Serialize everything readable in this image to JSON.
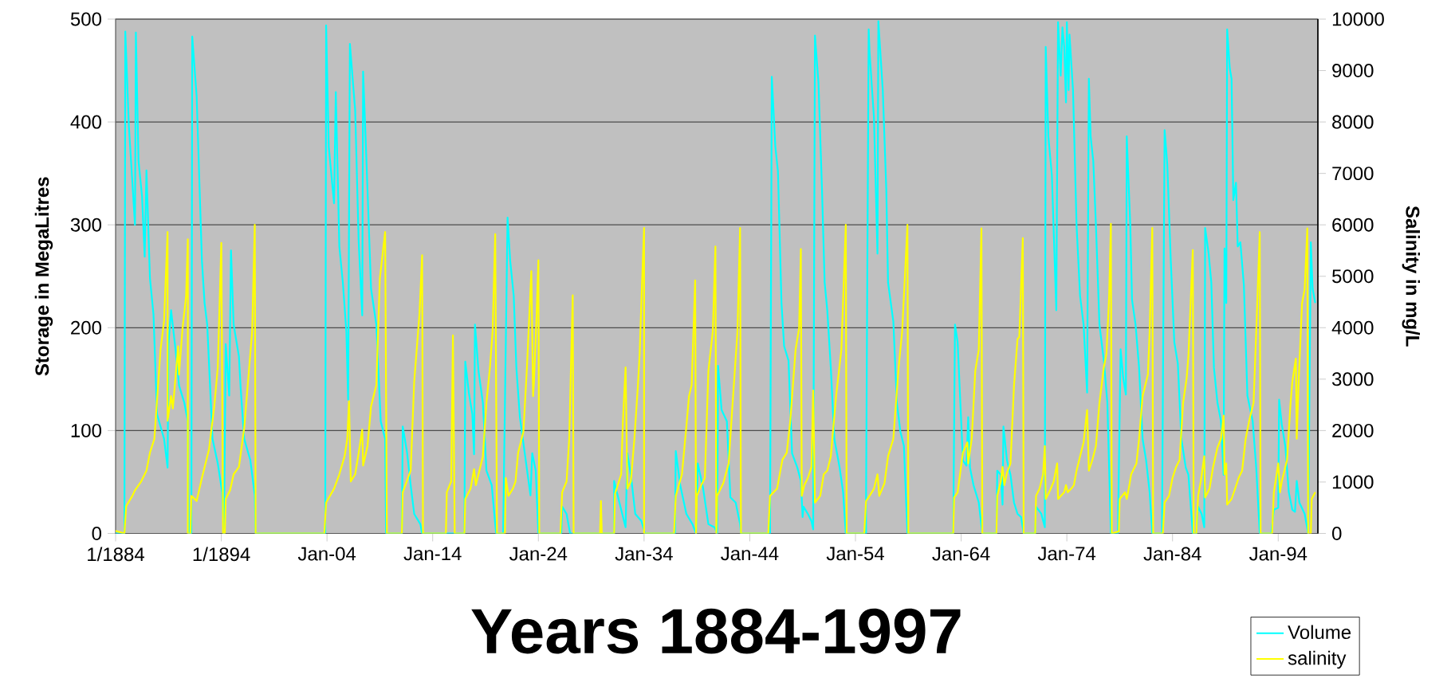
{
  "chart_data": {
    "type": "line",
    "xlabel": "Years 1884-1997",
    "ylabel": "Storage in MegaLitres",
    "y2label": "Salinity in mg/L",
    "xlim": [
      "1884-01",
      "1997-10"
    ],
    "xticks": [
      {
        "value": "1884-01",
        "label": "1/1884"
      },
      {
        "value": "1894-01",
        "label": "1/1894"
      },
      {
        "value": "1904-01",
        "label": "Jan-04"
      },
      {
        "value": "1914-01",
        "label": "Jan-14"
      },
      {
        "value": "1924-01",
        "label": "Jan-24"
      },
      {
        "value": "1934-01",
        "label": "Jan-34"
      },
      {
        "value": "1944-01",
        "label": "Jan-44"
      },
      {
        "value": "1954-01",
        "label": "Jan-54"
      },
      {
        "value": "1964-01",
        "label": "Jan-64"
      },
      {
        "value": "1974-01",
        "label": "Jan-74"
      },
      {
        "value": "1984-01",
        "label": "Jan-84"
      },
      {
        "value": "1994-01",
        "label": "Jan-94"
      }
    ],
    "ylim": [
      0,
      500
    ],
    "yticks": [
      0,
      100,
      200,
      300,
      400,
      500
    ],
    "y2lim": [
      0,
      10000
    ],
    "y2ticks": [
      0,
      1000,
      2000,
      3000,
      4000,
      5000,
      6000,
      7000,
      8000,
      9000,
      10000
    ],
    "grid": "y",
    "legend": "bottom right",
    "series": [
      {
        "name": "Volume",
        "color": "#00ffff",
        "x": [
          "1884-01",
          "1884-11",
          "1884-12",
          "1885-04",
          "1885-11",
          "1885-12",
          "1886-03",
          "1886-07",
          "1886-10",
          "1886-12",
          "1887-04",
          "1887-08",
          "1887-12",
          "1888-08",
          "1888-12",
          "1889-01",
          "1889-04",
          "1889-09",
          "1890-01",
          "1890-07",
          "1890-11",
          "1890-12",
          "1891-03",
          "1891-04",
          "1891-09",
          "1892-03",
          "1892-06",
          "1892-09",
          "1893-03",
          "1893-09",
          "1894-02",
          "1894-04",
          "1894-06",
          "1894-10",
          "1894-12",
          "1895-03",
          "1895-09",
          "1895-11",
          "1896-03",
          "1896-10",
          "1897-03",
          "1897-04",
          "1903-11",
          "1903-12",
          "1904-03",
          "1904-09",
          "1904-11",
          "1905-03",
          "1905-07",
          "1905-11",
          "1906-01",
          "1906-03",
          "1906-09",
          "1907-01",
          "1907-05",
          "1907-06",
          "1907-11",
          "1908-03",
          "1908-09",
          "1909-02",
          "1909-07",
          "1909-08",
          "1911-02",
          "1911-03",
          "1911-08",
          "1911-12",
          "1912-04",
          "1912-11",
          "1913-01",
          "1917-01",
          "1917-02",
          "1917-06",
          "1917-10",
          "1917-12",
          "1918-01",
          "1918-05",
          "1918-10",
          "1919-02",
          "1919-08",
          "1920-01",
          "1920-09",
          "1920-10",
          "1921-02",
          "1921-05",
          "1921-09",
          "1921-12",
          "1922-04",
          "1922-10",
          "1923-04",
          "1923-06",
          "1923-10",
          "1924-01",
          "1926-03",
          "1926-04",
          "1926-09",
          "1927-01",
          "1931-03",
          "1931-03",
          "1931-09",
          "1932-04",
          "1932-06",
          "1932-10",
          "1933-03",
          "1933-10",
          "1934-02",
          "1936-12",
          "1937-01",
          "1937-06",
          "1938-01",
          "1938-08",
          "1938-12",
          "1939-02",
          "1939-08",
          "1940-02",
          "1940-09",
          "1940-12",
          "1941-01",
          "1941-05",
          "1941-11",
          "1942-03",
          "1942-09",
          "1943-02",
          "1943-03",
          "1945-12",
          "1946-02",
          "1946-06",
          "1946-09",
          "1947-01",
          "1947-04",
          "1947-09",
          "1948-01",
          "1948-07",
          "1948-11",
          "1949-01",
          "1949-02",
          "1949-07",
          "1949-11",
          "1950-01",
          "1950-03",
          "1950-07",
          "1950-11",
          "1951-02",
          "1951-05",
          "1951-09",
          "1952-01",
          "1952-07",
          "1952-11",
          "1953-02",
          "1955-01",
          "1955-01",
          "1955-04",
          "1955-05",
          "1955-10",
          "1956-02",
          "1956-03",
          "1956-08",
          "1956-12",
          "1957-02",
          "1957-08",
          "1957-12",
          "1958-04",
          "1958-08",
          "1958-12",
          "1963-04",
          "1963-06",
          "1963-09",
          "1964-03",
          "1964-07",
          "1964-09",
          "1964-11",
          "1965-03",
          "1965-09",
          "1966-01",
          "1967-05",
          "1967-06",
          "1967-10",
          "1967-12",
          "1968-01",
          "1968-05",
          "1968-09",
          "1969-01",
          "1969-05",
          "1969-09",
          "1969-12",
          "1971-01",
          "1971-02",
          "1971-08",
          "1971-12",
          "1972-01",
          "1972-04",
          "1972-08",
          "1973-01",
          "1973-03",
          "1973-06",
          "1973-08",
          "1973-10",
          "1973-12",
          "1974-01",
          "1974-03",
          "1974-04",
          "1974-08",
          "1974-12",
          "1975-04",
          "1975-08",
          "1975-12",
          "1976-02",
          "1976-04",
          "1976-07",
          "1976-10",
          "1977-02",
          "1977-07",
          "1977-11",
          "1978-03",
          "1978-11",
          "1979-02",
          "1979-05",
          "1979-08",
          "1979-09",
          "1980-01",
          "1980-03",
          "1980-07",
          "1980-11",
          "1981-03",
          "1981-07",
          "1981-11",
          "1982-02",
          "1983-01",
          "1983-04",
          "1983-07",
          "1983-11",
          "1984-03",
          "1984-07",
          "1984-11",
          "1985-04",
          "1985-07",
          "1985-12",
          "1986-04",
          "1986-06",
          "1986-10",
          "1987-01",
          "1987-02",
          "1987-06",
          "1987-09",
          "1987-12",
          "1988-04",
          "1988-08",
          "1988-11",
          "1988-12",
          "1989-02",
          "1989-03",
          "1989-06",
          "1989-08",
          "1989-10",
          "1990-01",
          "1990-03",
          "1990-06",
          "1990-10",
          "1991-02",
          "1991-08",
          "1991-12",
          "1992-04",
          "1993-05",
          "1993-08",
          "1994-01",
          "1994-02",
          "1994-05",
          "1994-09",
          "1995-01",
          "1995-05",
          "1995-08",
          "1995-10",
          "1996-01",
          "1996-07",
          "1996-11",
          "1997-02",
          "1997-04",
          "1997-07"
        ],
        "values": [
          0,
          0,
          488,
          397,
          300,
          487,
          362,
          328,
          269,
          353,
          248,
          213,
          116,
          92,
          64,
          184,
          217,
          179,
          144,
          127,
          109,
          0,
          0,
          483,
          425,
          265,
          224,
          203,
          92,
          68,
          40,
          0,
          184,
          134,
          275,
          203,
          172,
          141,
          92,
          71,
          37,
          0,
          0,
          494,
          376,
          321,
          429,
          279,
          244,
          196,
          130,
          476,
          411,
          283,
          212,
          449,
          334,
          238,
          203,
          109,
          92,
          0,
          0,
          104,
          78,
          47,
          19,
          9,
          0,
          0,
          167,
          137,
          116,
          77,
          203,
          158,
          127,
          61,
          47,
          0,
          0,
          64,
          307,
          265,
          231,
          161,
          113,
          75,
          37,
          78,
          61,
          0,
          0,
          26,
          19,
          0,
          0,
          51,
          30,
          6,
          78,
          57,
          19,
          12,
          0,
          0,
          80,
          47,
          19,
          9,
          0,
          68,
          44,
          9,
          6,
          0,
          163,
          120,
          109,
          35,
          30,
          9,
          0,
          0,
          444,
          376,
          352,
          224,
          182,
          168,
          78,
          64,
          51,
          16,
          26,
          19,
          12,
          4,
          484,
          438,
          334,
          244,
          217,
          161,
          92,
          64,
          40,
          0,
          0,
          30,
          490,
          468,
          404,
          272,
          498,
          431,
          334,
          244,
          206,
          127,
          99,
          85,
          0,
          0,
          203,
          186,
          71,
          66,
          113,
          64,
          47,
          30,
          0,
          0,
          61,
          57,
          28,
          104,
          71,
          57,
          30,
          19,
          16,
          0,
          0,
          26,
          19,
          6,
          473,
          386,
          348,
          217,
          497,
          445,
          492,
          473,
          419,
          497,
          431,
          485,
          431,
          300,
          231,
          203,
          137,
          442,
          386,
          362,
          300,
          203,
          168,
          127,
          0,
          0,
          179,
          151,
          135,
          386,
          300,
          227,
          203,
          161,
          92,
          71,
          40,
          0,
          0,
          392,
          359,
          265,
          186,
          165,
          92,
          64,
          57,
          0,
          0,
          26,
          19,
          6,
          297,
          272,
          244,
          161,
          127,
          109,
          57,
          277,
          224,
          490,
          452,
          442,
          324,
          341,
          279,
          283,
          241,
          134,
          109,
          64,
          0,
          0,
          23,
          25,
          130,
          106,
          85,
          40,
          23,
          21,
          51,
          30,
          19,
          0,
          283,
          238,
          224
        ]
      },
      {
        "name": "salinity",
        "color": "#ffff00",
        "axis": "y2",
        "x": [
          "1884-01",
          "1884-11",
          "1885-01",
          "1885-08",
          "1885-11",
          "1886-06",
          "1886-12",
          "1887-04",
          "1887-09",
          "1888-04",
          "1888-08",
          "1888-12",
          "1888-12",
          "1889-04",
          "1889-06",
          "1889-10",
          "1889-12",
          "1890-01",
          "1890-05",
          "1890-09",
          "1890-11",
          "1890-11",
          "1891-02",
          "1891-03",
          "1891-09",
          "1892-03",
          "1892-11",
          "1893-05",
          "1893-09",
          "1894-01",
          "1894-03",
          "1894-05",
          "1894-06",
          "1894-11",
          "1895-03",
          "1895-09",
          "1896-03",
          "1896-12",
          "1897-03",
          "1897-04",
          "1903-10",
          "1903-12",
          "1904-09",
          "1905-03",
          "1905-09",
          "1905-12",
          "1906-02",
          "1906-04",
          "1906-09",
          "1907-01",
          "1907-05",
          "1907-06",
          "1907-11",
          "1908-03",
          "1908-09",
          "1909-01",
          "1909-07",
          "1909-09",
          "1911-02",
          "1911-03",
          "1911-12",
          "1912-04",
          "1912-10",
          "1913-01",
          "1913-02",
          "1915-04",
          "1915-05",
          "1915-10",
          "1915-12",
          "1916-02",
          "1917-01",
          "1917-02",
          "1917-08",
          "1917-12",
          "1918-02",
          "1918-06",
          "1918-10",
          "1919-02",
          "1919-06",
          "1919-09",
          "1919-12",
          "1920-02",
          "1920-11",
          "1920-12",
          "1921-03",
          "1921-08",
          "1921-11",
          "1922-02",
          "1922-08",
          "1922-12",
          "1923-05",
          "1923-07",
          "1923-08",
          "1923-11",
          "1924-01",
          "1924-02",
          "1926-02",
          "1926-04",
          "1926-09",
          "1926-12",
          "1927-04",
          "1927-05",
          "1929-11",
          "1929-12",
          "1930-01",
          "1931-03",
          "1931-04",
          "1931-11",
          "1932-01",
          "1932-04",
          "1932-06",
          "1932-10",
          "1933-02",
          "1933-06",
          "1933-08",
          "1933-10",
          "1934-01",
          "1934-01",
          "1936-11",
          "1937-01",
          "1937-08",
          "1938-01",
          "1938-04",
          "1938-07",
          "1938-11",
          "1938-12",
          "1939-01",
          "1939-06",
          "1939-10",
          "1940-02",
          "1940-07",
          "1940-10",
          "1940-11",
          "1940-12",
          "1941-07",
          "1942-01",
          "1942-05",
          "1942-11",
          "1943-02",
          "1943-03",
          "1945-10",
          "1945-12",
          "1946-08",
          "1947-02",
          "1947-07",
          "1947-11",
          "1948-05",
          "1948-09",
          "1948-11",
          "1948-12",
          "1949-03",
          "1949-07",
          "1949-11",
          "1950-01",
          "1950-03",
          "1950-09",
          "1951-01",
          "1951-05",
          "1951-09",
          "1952-03",
          "1952-09",
          "1953-02",
          "1953-03",
          "1954-11",
          "1955-01",
          "1955-05",
          "1955-10",
          "1956-02",
          "1956-04",
          "1956-10",
          "1957-02",
          "1957-08",
          "1958-02",
          "1958-06",
          "1958-12",
          "1959-01",
          "1963-04",
          "1963-05",
          "1963-09",
          "1964-03",
          "1964-08",
          "1964-09",
          "1965-01",
          "1965-05",
          "1965-09",
          "1965-12",
          "1966-01",
          "1967-05",
          "1967-06",
          "1967-10",
          "1967-12",
          "1968-02",
          "1968-05",
          "1968-09",
          "1969-01",
          "1969-05",
          "1969-07",
          "1969-11",
          "1969-12",
          "1971-01",
          "1971-02",
          "1971-06",
          "1971-10",
          "1971-12",
          "1972-01",
          "1972-06",
          "1972-10",
          "1973-02",
          "1973-03",
          "1973-10",
          "1973-12",
          "1974-02",
          "1974-06",
          "1974-09",
          "1974-12",
          "1975-04",
          "1975-08",
          "1975-12",
          "1976-02",
          "1976-06",
          "1976-10",
          "1977-02",
          "1977-07",
          "1977-10",
          "1978-01",
          "1978-03",
          "1978-04",
          "1978-12",
          "1979-01",
          "1979-07",
          "1979-09",
          "1979-12",
          "1980-02",
          "1980-08",
          "1980-11",
          "1981-03",
          "1981-09",
          "1981-11",
          "1982-02",
          "1982-03",
          "1983-02",
          "1983-04",
          "1983-09",
          "1984-01",
          "1984-05",
          "1984-09",
          "1985-01",
          "1985-05",
          "1985-07",
          "1985-12",
          "1986-01",
          "1986-04",
          "1986-06",
          "1986-09",
          "1987-01",
          "1987-02",
          "1987-07",
          "1987-11",
          "1988-04",
          "1988-08",
          "1988-11",
          "1988-12",
          "1989-02",
          "1989-03",
          "1989-08",
          "1989-12",
          "1990-04",
          "1990-08",
          "1990-12",
          "1991-04",
          "1991-09",
          "1991-12",
          "1992-04",
          "1992-05",
          "1993-06",
          "1993-08",
          "1994-01",
          "1994-03",
          "1994-05",
          "1994-11",
          "1995-03",
          "1995-05",
          "1995-09",
          "1995-10",
          "1995-12",
          "1996-04",
          "1996-07",
          "1996-10",
          "1996-11",
          "1997-02",
          "1997-03",
          "1997-07"
        ],
        "values": [
          50,
          0,
          530,
          730,
          840,
          1010,
          1220,
          1570,
          1840,
          3570,
          4130,
          5860,
          2190,
          2670,
          2430,
          3230,
          3640,
          3090,
          3990,
          4610,
          5720,
          0,
          0,
          730,
          630,
          1080,
          1630,
          2470,
          3230,
          5650,
          0,
          0,
          670,
          840,
          1150,
          1290,
          2050,
          3920,
          6000,
          0,
          0,
          600,
          870,
          1150,
          1500,
          1840,
          2570,
          1010,
          1150,
          1570,
          2020,
          1320,
          1700,
          2470,
          2880,
          4960,
          5860,
          0,
          0,
          800,
          1220,
          2950,
          4270,
          5410,
          0,
          0,
          800,
          1010,
          3850,
          0,
          0,
          670,
          870,
          1250,
          940,
          1220,
          1500,
          2540,
          3230,
          3920,
          5820,
          0,
          0,
          1080,
          730,
          870,
          1010,
          1570,
          1980,
          3230,
          5100,
          2670,
          2950,
          4270,
          5310,
          0,
          0,
          800,
          1010,
          1840,
          4630,
          0,
          0,
          630,
          0,
          0,
          770,
          1150,
          2190,
          3230,
          870,
          1010,
          1840,
          2880,
          3500,
          4540,
          5940,
          0,
          0,
          730,
          1150,
          2080,
          2670,
          2880,
          4920,
          0,
          730,
          940,
          1080,
          3160,
          3920,
          5580,
          0,
          730,
          980,
          1360,
          2400,
          3920,
          5940,
          0,
          0,
          730,
          870,
          1430,
          1570,
          2190,
          3570,
          3990,
          5530,
          730,
          940,
          1080,
          1290,
          2780,
          600,
          730,
          1150,
          1220,
          1500,
          2670,
          3570,
          6000,
          0,
          0,
          630,
          730,
          870,
          1150,
          730,
          980,
          1500,
          1840,
          3230,
          3920,
          6000,
          0,
          0,
          700,
          800,
          1570,
          1770,
          1360,
          1840,
          3160,
          3570,
          5930,
          0,
          0,
          730,
          1010,
          1290,
          940,
          1180,
          1360,
          2880,
          3780,
          3820,
          5740,
          0,
          0,
          730,
          870,
          1150,
          1700,
          670,
          840,
          1010,
          1360,
          670,
          800,
          940,
          800,
          870,
          940,
          1220,
          1500,
          1770,
          2400,
          1220,
          1430,
          1700,
          2540,
          3230,
          3500,
          4610,
          6020,
          0,
          40,
          670,
          800,
          670,
          940,
          1150,
          1360,
          1840,
          2670,
          3090,
          3920,
          5940,
          0,
          0,
          600,
          730,
          1080,
          1290,
          1430,
          2540,
          3020,
          3440,
          5510,
          0,
          0,
          730,
          1010,
          1500,
          700,
          870,
          1290,
          1670,
          1840,
          2290,
          1150,
          1360,
          560,
          670,
          870,
          1080,
          1220,
          1840,
          2190,
          2540,
          3920,
          5860,
          0,
          0,
          800,
          1360,
          800,
          1010,
          1430,
          2540,
          2950,
          3400,
          1840,
          2880,
          4470,
          4750,
          5930,
          0,
          0,
          670,
          800
        ]
      }
    ]
  }
}
